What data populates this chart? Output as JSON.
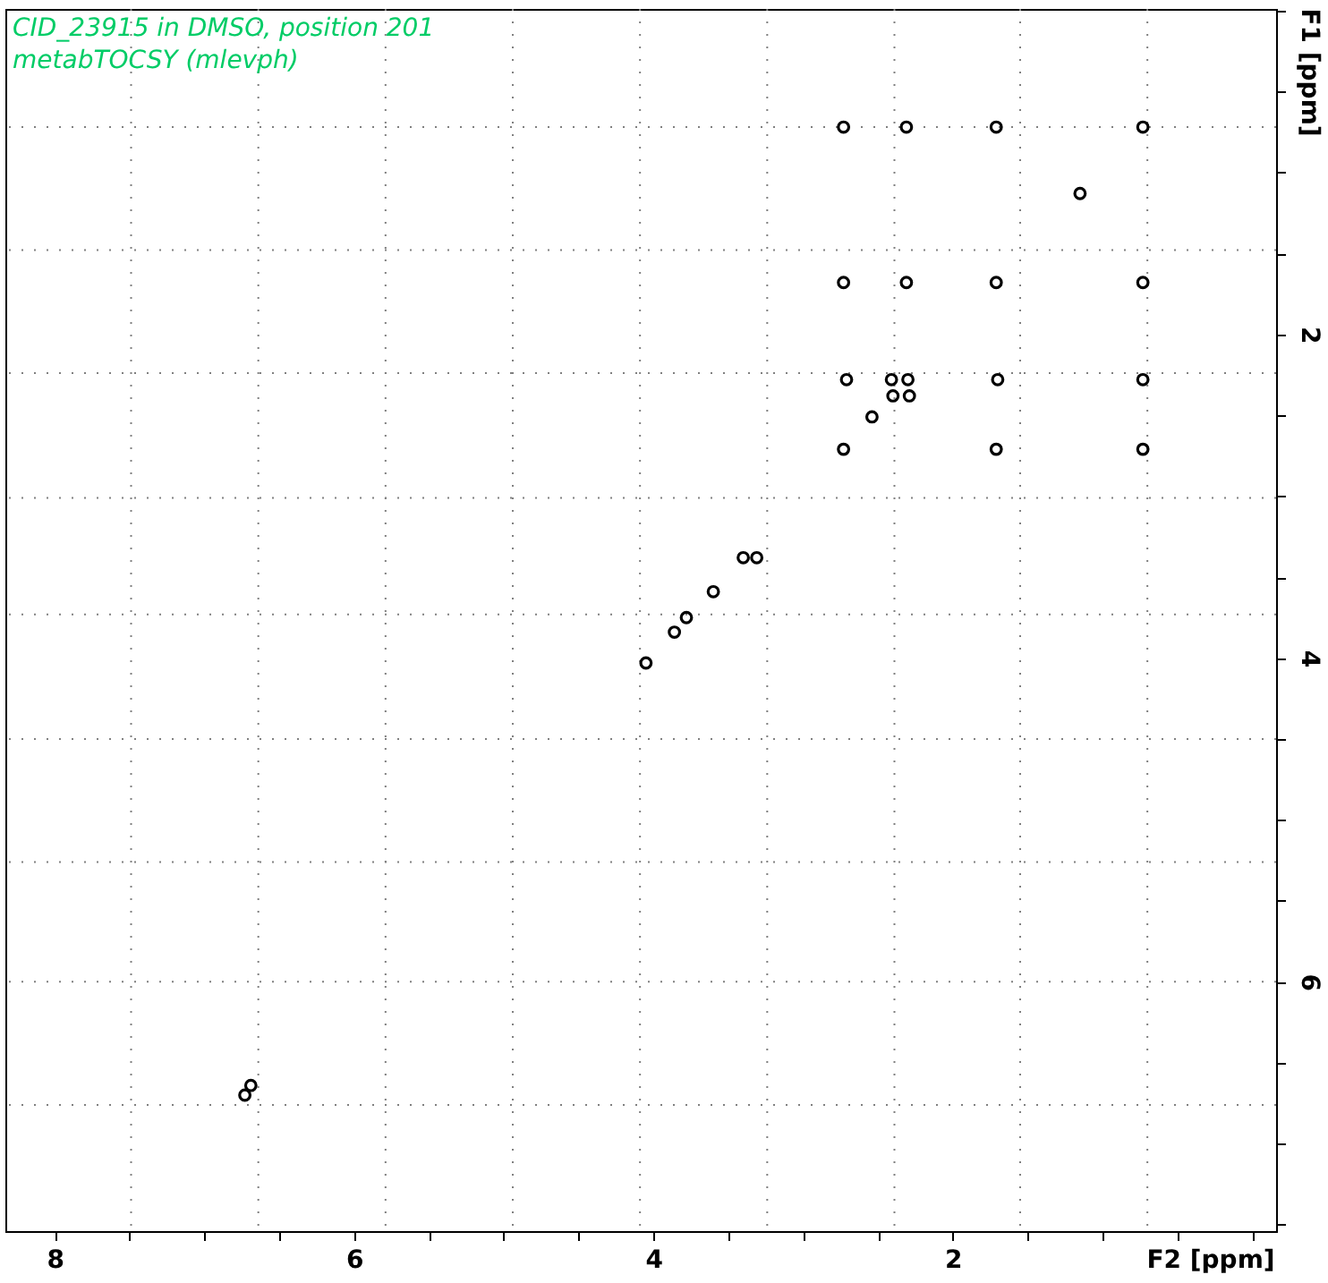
{
  "chart_data": {
    "type": "scatter",
    "title": "CID_23915 in DMSO, position 201",
    "subtitle": "metabTOCSY (mlevph)",
    "xlabel": "F2 [ppm]",
    "ylabel": "F1 [ppm]",
    "x": [
      2.73,
      2.31,
      1.71,
      0.73,
      1.15,
      2.73,
      2.31,
      1.71,
      0.73,
      2.71,
      2.41,
      2.3,
      1.7,
      0.73,
      2.4,
      2.29,
      2.54,
      2.73,
      1.71,
      0.73,
      3.4,
      3.31,
      3.6,
      3.78,
      3.86,
      4.05,
      6.73,
      6.69
    ],
    "values": [
      0.72,
      0.72,
      0.72,
      0.72,
      1.13,
      1.68,
      1.68,
      1.68,
      1.68,
      2.28,
      2.28,
      2.28,
      2.28,
      2.28,
      2.38,
      2.38,
      2.51,
      2.71,
      2.71,
      2.71,
      3.38,
      3.38,
      3.59,
      3.75,
      3.84,
      4.03,
      6.7,
      6.64
    ],
    "color": "#000000",
    "marker": "circle",
    "xlim": [
      8.33,
      -0.16
    ],
    "ylim": [
      7.54,
      -0.01
    ],
    "xticks": [
      8,
      {
        "value": 7.5,
        "label": null
      },
      {
        "value": 7,
        "label": null
      },
      {
        "value": 6.5,
        "label": null
      },
      6,
      {
        "value": 5.5,
        "label": null
      },
      {
        "value": 5,
        "label": null
      },
      {
        "value": 4.5,
        "label": null
      },
      4,
      {
        "value": 3.5,
        "label": null
      },
      {
        "value": 3,
        "label": null
      },
      {
        "value": 2.5,
        "label": null
      },
      2,
      {
        "value": 1.5,
        "label": null
      },
      {
        "value": 1,
        "label": null
      },
      {
        "value": 0.5,
        "label": null
      },
      {
        "value": 0,
        "label": null
      }
    ],
    "yticks": [
      {
        "value": 0,
        "label": null
      },
      {
        "value": 0.5,
        "label": null
      },
      {
        "value": 1,
        "label": null
      },
      {
        "value": 1.5,
        "label": null
      },
      2,
      {
        "value": 2.5,
        "label": null
      },
      {
        "value": 3,
        "label": null
      },
      {
        "value": 3.5,
        "label": null
      },
      4,
      {
        "value": 4.5,
        "label": null
      },
      {
        "value": 5,
        "label": null
      },
      {
        "value": 5.5,
        "label": null
      },
      6,
      {
        "value": 6.5,
        "label": null
      },
      {
        "value": 7,
        "label": null
      },
      {
        "value": 7.5,
        "label": null
      }
    ],
    "ref_lines": [
      {
        "axis": "x",
        "value": 7.49,
        "color": "#808080",
        "line_style": "dotted"
      },
      {
        "axis": "x",
        "value": 6.64,
        "color": "#808080",
        "line_style": "dotted"
      },
      {
        "axis": "x",
        "value": 5.79,
        "color": "#808080",
        "line_style": "dotted"
      },
      {
        "axis": "x",
        "value": 4.94,
        "color": "#808080",
        "line_style": "dotted"
      },
      {
        "axis": "x",
        "value": 4.09,
        "color": "#808080",
        "line_style": "dotted"
      },
      {
        "axis": "x",
        "value": 3.24,
        "color": "#808080",
        "line_style": "dotted"
      },
      {
        "axis": "x",
        "value": 2.39,
        "color": "#808080",
        "line_style": "dotted"
      },
      {
        "axis": "x",
        "value": 1.55,
        "color": "#808080",
        "line_style": "dotted"
      },
      {
        "axis": "x",
        "value": 0.7,
        "color": "#808080",
        "line_style": "dotted"
      },
      {
        "axis": "y",
        "value": 0.72,
        "color": "#808080",
        "line_style": "dotted"
      },
      {
        "axis": "y",
        "value": 1.48,
        "color": "#808080",
        "line_style": "dotted"
      },
      {
        "axis": "y",
        "value": 2.24,
        "color": "#808080",
        "line_style": "dotted"
      },
      {
        "axis": "y",
        "value": 3.01,
        "color": "#808080",
        "line_style": "dotted"
      },
      {
        "axis": "y",
        "value": 3.73,
        "color": "#808080",
        "line_style": "dotted"
      },
      {
        "axis": "y",
        "value": 4.5,
        "color": "#808080",
        "line_style": "dotted"
      },
      {
        "axis": "y",
        "value": 5.26,
        "color": "#808080",
        "line_style": "dotted"
      },
      {
        "axis": "y",
        "value": 6.0,
        "color": "#808080",
        "line_style": "dotted"
      },
      {
        "axis": "y",
        "value": 6.76,
        "color": "#808080",
        "line_style": "dotted"
      }
    ]
  }
}
